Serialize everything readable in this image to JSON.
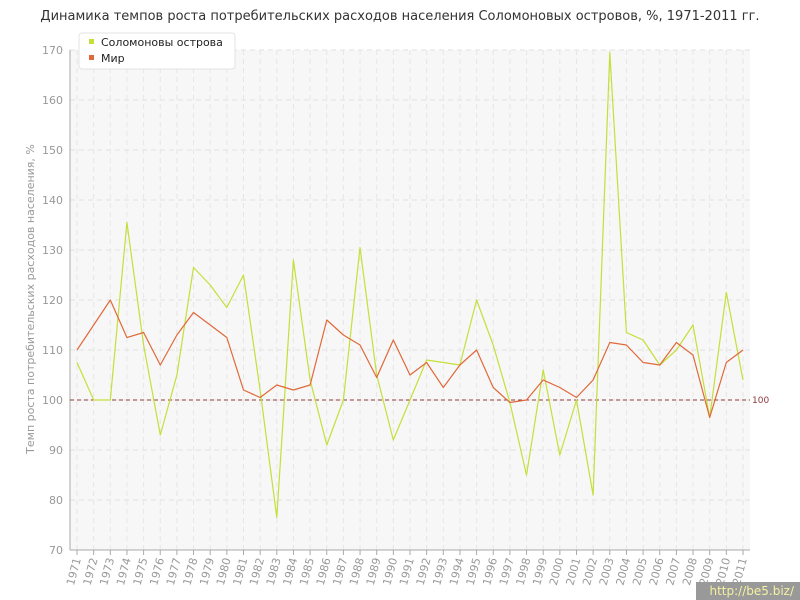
{
  "chart_data": {
    "type": "line",
    "title": "Динамика темпов роста потребительских расходов населения Соломоновых островов, %, 1971-2011 гг.",
    "ylabel": "Темп роста потребительских расходов населения, %",
    "xlabel": "",
    "ylim": [
      70,
      170
    ],
    "yticks": [
      70,
      80,
      90,
      100,
      110,
      120,
      130,
      140,
      150,
      160,
      170
    ],
    "grid": true,
    "legend_position": "top-left",
    "x": [
      1971,
      1972,
      1973,
      1974,
      1975,
      1976,
      1977,
      1978,
      1979,
      1980,
      1981,
      1982,
      1983,
      1984,
      1985,
      1986,
      1987,
      1988,
      1989,
      1990,
      1991,
      1992,
      1993,
      1994,
      1995,
      1996,
      1997,
      1998,
      1999,
      2000,
      2001,
      2002,
      2003,
      2004,
      2005,
      2006,
      2007,
      2008,
      2009,
      2010,
      2011
    ],
    "series": [
      {
        "name": "Соломоновы острова",
        "color": "#c5df3a",
        "values": [
          107.5,
          100,
          100,
          135.5,
          111,
          93,
          105,
          126.5,
          123,
          118.5,
          125,
          102,
          76.5,
          128,
          104,
          91,
          100,
          130.5,
          105,
          92,
          100,
          108,
          107.5,
          107,
          120,
          111,
          99.5,
          85,
          106,
          89,
          100,
          81,
          169.5,
          113.5,
          112,
          107,
          110,
          115,
          96.5,
          121.5,
          104
        ]
      },
      {
        "name": "Мир",
        "color": "#e0693a",
        "values": [
          110,
          115,
          120,
          112.5,
          113.5,
          107,
          113,
          117.5,
          115,
          112.5,
          102,
          100.5,
          103,
          102,
          103,
          116,
          113,
          111,
          104.5,
          112,
          105,
          107.5,
          102.5,
          107,
          110,
          102.5,
          99.5,
          100,
          104,
          102.5,
          100.5,
          104,
          111.5,
          111,
          107.5,
          107,
          111.5,
          109,
          96.5,
          107.5,
          110
        ]
      }
    ],
    "reference_line": {
      "value": 100,
      "label": "100",
      "color": "#8e3a3a"
    }
  },
  "watermark": "http://be5.biz/"
}
